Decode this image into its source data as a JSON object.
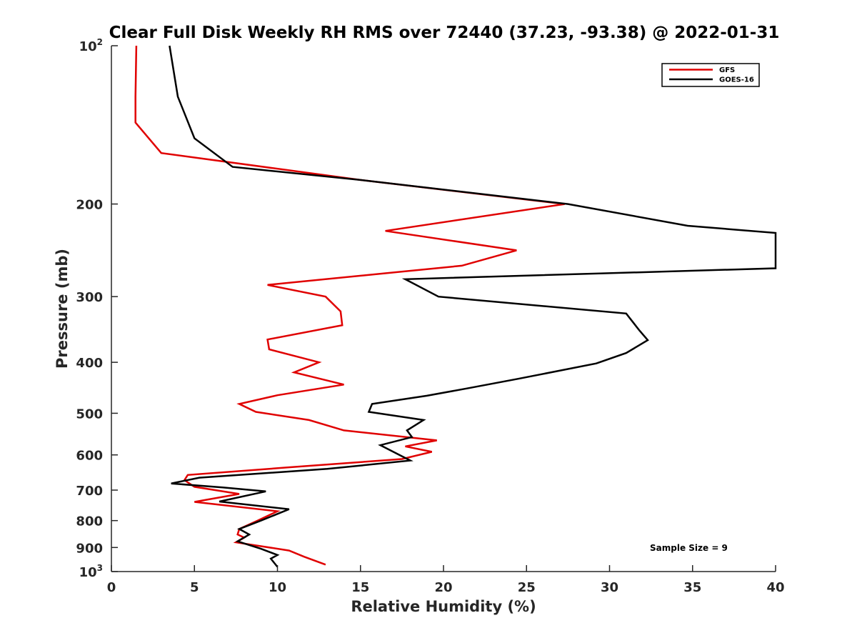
{
  "chart_data": {
    "type": "line",
    "title": "Clear Full Disk Weekly RH RMS over 72440 (37.23, -93.38) @ 2022-01-31",
    "xlabel": "Relative Humidity (%)",
    "ylabel": "Pressure (mb)",
    "xlim": [
      0,
      40
    ],
    "ylim": [
      100,
      1000
    ],
    "y_scale": "log",
    "y_reversed": true,
    "x_ticks": [
      "0",
      "5",
      "10",
      "15",
      "20",
      "25",
      "30",
      "35",
      "40"
    ],
    "y_ticks": [
      {
        "value": 100,
        "base": "10",
        "exp": "2"
      },
      {
        "value": 200,
        "label": "200"
      },
      {
        "value": 300,
        "label": "300"
      },
      {
        "value": 400,
        "label": "400"
      },
      {
        "value": 500,
        "label": "500"
      },
      {
        "value": 600,
        "label": "600"
      },
      {
        "value": 700,
        "label": "700"
      },
      {
        "value": 800,
        "label": "800"
      },
      {
        "value": 900,
        "label": "900"
      },
      {
        "value": 1000,
        "base": "10",
        "exp": "3"
      }
    ],
    "grid": false,
    "legend_position": "top-right",
    "annotation": "Sample Size = 9",
    "series": [
      {
        "name": "GFS",
        "color": "#e00000",
        "points": [
          [
            1.5,
            100
          ],
          [
            1.45,
            125
          ],
          [
            1.45,
            140
          ],
          [
            3.0,
            160
          ],
          [
            15.0,
            180
          ],
          [
            27.3,
            200
          ],
          [
            16.5,
            225
          ],
          [
            24.4,
            245
          ],
          [
            21.1,
            262
          ],
          [
            9.4,
            285
          ],
          [
            12.9,
            300
          ],
          [
            13.8,
            320
          ],
          [
            13.9,
            340
          ],
          [
            9.4,
            362
          ],
          [
            9.5,
            378
          ],
          [
            12.5,
            400
          ],
          [
            11.0,
            418
          ],
          [
            14.0,
            441
          ],
          [
            10.0,
            462
          ],
          [
            7.7,
            480
          ],
          [
            8.7,
            497
          ],
          [
            11.9,
            515
          ],
          [
            14.0,
            539
          ],
          [
            19.6,
            563
          ],
          [
            17.7,
            578
          ],
          [
            19.3,
            592
          ],
          [
            17.5,
            611
          ],
          [
            10.6,
            634
          ],
          [
            4.6,
            655
          ],
          [
            4.4,
            670
          ],
          [
            5.0,
            690
          ],
          [
            7.7,
            712
          ],
          [
            5.0,
            737
          ],
          [
            10.0,
            768
          ],
          [
            8.8,
            800
          ],
          [
            7.7,
            830
          ],
          [
            7.6,
            850
          ],
          [
            8.0,
            862
          ],
          [
            7.5,
            880
          ],
          [
            10.7,
            912
          ],
          [
            11.6,
            937
          ],
          [
            12.9,
            970
          ]
        ]
      },
      {
        "name": "GOES-16",
        "color": "#000000",
        "points": [
          [
            3.5,
            100
          ],
          [
            4.0,
            125
          ],
          [
            5.0,
            150
          ],
          [
            7.3,
            170
          ],
          [
            15.0,
            180
          ],
          [
            27.5,
            200
          ],
          [
            34.7,
            220
          ],
          [
            40.0,
            227
          ],
          [
            40.0,
            265
          ],
          [
            17.7,
            278
          ],
          [
            19.7,
            300
          ],
          [
            31.0,
            323
          ],
          [
            31.8,
            348
          ],
          [
            32.3,
            363
          ],
          [
            31.0,
            384
          ],
          [
            29.2,
            402
          ],
          [
            24.5,
            430
          ],
          [
            21.5,
            448
          ],
          [
            19.0,
            463
          ],
          [
            15.7,
            480
          ],
          [
            15.5,
            497
          ],
          [
            18.8,
            515
          ],
          [
            17.8,
            539
          ],
          [
            18.1,
            555
          ],
          [
            16.2,
            575
          ],
          [
            18.0,
            615
          ],
          [
            13.0,
            638
          ],
          [
            5.3,
            663
          ],
          [
            3.6,
            680
          ],
          [
            6.7,
            692
          ],
          [
            9.3,
            704
          ],
          [
            6.5,
            736
          ],
          [
            10.7,
            761
          ],
          [
            9.0,
            800
          ],
          [
            7.7,
            830
          ],
          [
            8.3,
            850
          ],
          [
            7.6,
            876
          ],
          [
            9.0,
            905
          ],
          [
            10.0,
            930
          ],
          [
            9.6,
            945
          ],
          [
            10.0,
            980
          ]
        ]
      }
    ]
  }
}
